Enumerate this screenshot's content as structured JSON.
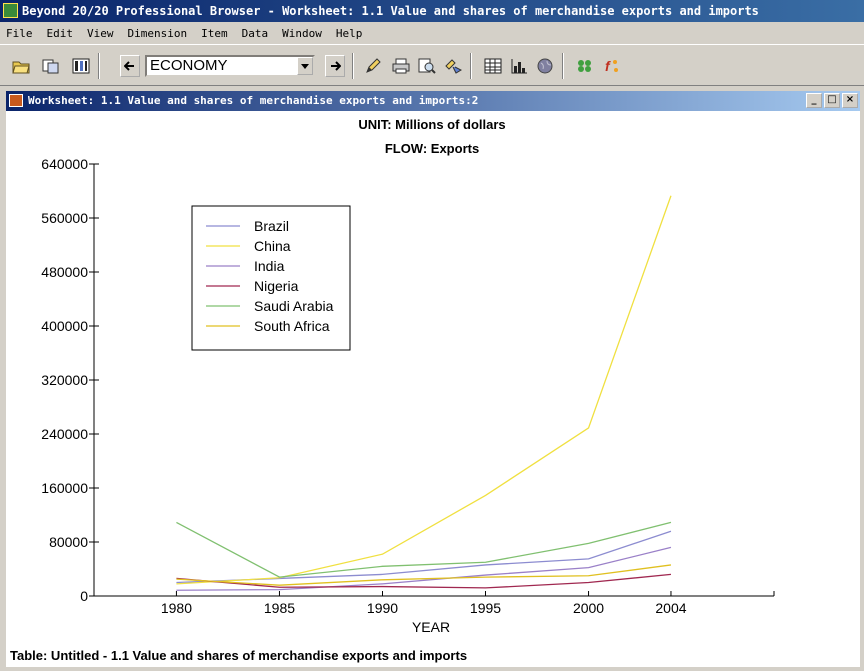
{
  "app": {
    "title": "Beyond 20/20 Professional Browser - Worksheet: 1.1  Value and shares of merchandise exports and imports"
  },
  "menu": [
    "File",
    "Edit",
    "View",
    "Dimension",
    "Item",
    "Data",
    "Window",
    "Help"
  ],
  "toolbar": {
    "dimension_value": "ECONOMY",
    "icons": [
      "open-folder-icon",
      "copy-icon",
      "column-icon",
      "previous-icon",
      "next-icon",
      "pencil-icon",
      "print-icon",
      "print-preview-icon",
      "link-icon",
      "table-icon",
      "bar-chart-icon",
      "globe-icon",
      "dots-icon",
      "function-icon"
    ]
  },
  "worksheet": {
    "title": "Worksheet: 1.1  Value and shares of merchandise exports and imports:2",
    "window_buttons": [
      "_",
      "□",
      "×"
    ],
    "footer": "Table: Untitled - 1.1  Value and shares of merchandise exports and imports"
  },
  "chart_data": {
    "type": "line",
    "title": "UNIT: Millions of dollars",
    "subtitle": "FLOW: Exports",
    "xlabel": "YEAR",
    "ylabel": "",
    "x": [
      1980,
      1985,
      1990,
      1995,
      2000,
      2004
    ],
    "x_ticks": [
      "1980",
      "1985",
      "1990",
      "1995",
      "2000",
      "2004"
    ],
    "xlim": [
      1976,
      2009
    ],
    "ylim": [
      0,
      640000
    ],
    "y_ticks": [
      "0",
      "80000",
      "160000",
      "240000",
      "320000",
      "400000",
      "480000",
      "560000",
      "640000"
    ],
    "grid": false,
    "legend": "upper-left",
    "series": [
      {
        "name": "Brazil",
        "color": "#8c8cd0",
        "values": [
          20000,
          26000,
          32000,
          46000,
          55000,
          96000
        ]
      },
      {
        "name": "China",
        "color": "#f0e040",
        "values": [
          18000,
          27000,
          62000,
          149000,
          249000,
          593000
        ]
      },
      {
        "name": "India",
        "color": "#9a80c8",
        "values": [
          8500,
          9500,
          18000,
          31000,
          42000,
          72000
        ]
      },
      {
        "name": "Nigeria",
        "color": "#a02850",
        "values": [
          26000,
          13000,
          14000,
          12000,
          20000,
          32000
        ]
      },
      {
        "name": "Saudi Arabia",
        "color": "#80c070",
        "values": [
          109000,
          28000,
          44000,
          50000,
          78000,
          109000
        ]
      },
      {
        "name": "South Africa",
        "color": "#e0c020",
        "values": [
          25000,
          16000,
          24000,
          28000,
          30000,
          46000
        ]
      }
    ]
  }
}
